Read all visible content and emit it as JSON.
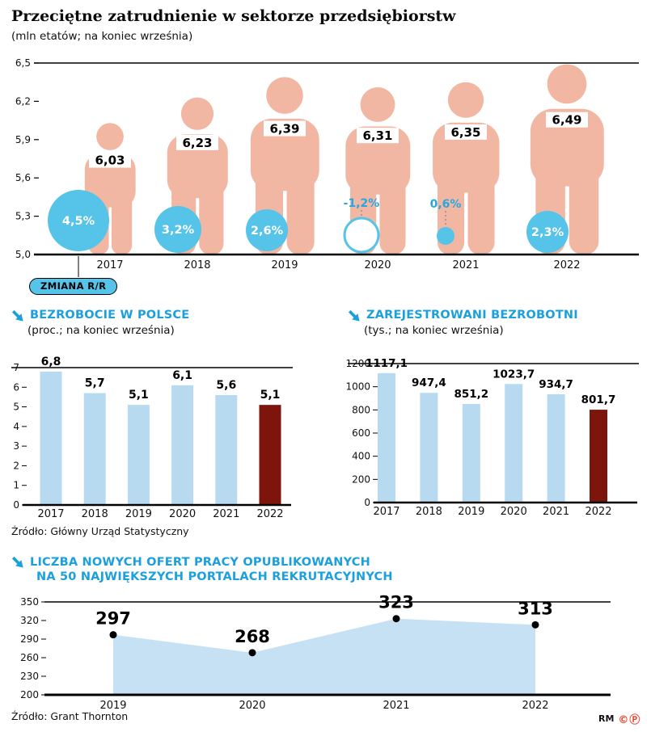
{
  "page": {
    "title": "Przeciętne zatrudnienie w sektorze przedsiębiorstw",
    "subtitle": "(mln etatów; na koniec września)",
    "credit": "RM",
    "copyright": "©Ⓟ"
  },
  "colors": {
    "figure": "#F2B7A3",
    "bubble": "#56C3E9",
    "header": "#1CA0DC",
    "bar_light": "#B8DAF0",
    "bar_dark": "#7E150C",
    "area_fill": "#C7E1F4"
  },
  "chart_data": [
    {
      "id": "employment",
      "type": "bar",
      "style": "pictogram",
      "title": "Przeciętne zatrudnienie w sektorze przedsiębiorstw",
      "subtitle": "(mln etatów; na koniec września)",
      "ylim": [
        5.0,
        6.5
      ],
      "yticks": [
        "6,5",
        "6,2",
        "5,9",
        "5,6",
        "5,3",
        "5,0"
      ],
      "categories": [
        "2017",
        "2018",
        "2019",
        "2020",
        "2021",
        "2022"
      ],
      "values": [
        6.03,
        6.23,
        6.39,
        6.31,
        6.35,
        6.49
      ],
      "value_labels": [
        "6,03",
        "6,23",
        "6,39",
        "6,31",
        "6,35",
        "6,49"
      ],
      "change_series": {
        "name": "ZMIANA R/R",
        "values": [
          4.5,
          3.2,
          2.6,
          -1.2,
          0.6,
          2.3
        ],
        "labels": [
          "4,5%",
          "3,2%",
          "2,6%",
          "-1,2%",
          "0,6%",
          "2,3%"
        ]
      },
      "badge_label": "ZMIANA R/R"
    },
    {
      "id": "unemployment-rate",
      "type": "bar",
      "title": "BEZROBOCIE W POLSCE",
      "subtitle": "(proc.; na koniec września)",
      "ylim": [
        0,
        7
      ],
      "yticks": [
        7,
        6,
        5,
        4,
        3,
        2,
        1,
        0
      ],
      "categories": [
        "2017",
        "2018",
        "2019",
        "2020",
        "2021",
        "2022"
      ],
      "values": [
        6.8,
        5.7,
        5.1,
        6.1,
        5.6,
        5.1
      ],
      "value_labels": [
        "6,8",
        "5,7",
        "5,1",
        "6,1",
        "5,6",
        "5,1"
      ],
      "highlight_last": true,
      "source": "Źródło: Główny Urząd Statystyczny"
    },
    {
      "id": "registered-unemployed",
      "type": "bar",
      "title": "ZAREJESTROWANI BEZROBOTNI",
      "subtitle": "(tys.; na koniec września)",
      "ylim": [
        0,
        1200
      ],
      "yticks": [
        1200,
        1000,
        800,
        600,
        400,
        200,
        0
      ],
      "categories": [
        "2017",
        "2018",
        "2019",
        "2020",
        "2021",
        "2022"
      ],
      "values": [
        1117.1,
        947.4,
        851.2,
        1023.7,
        934.7,
        801.7
      ],
      "value_labels": [
        "1117,1",
        "947,4",
        "851,2",
        "1023,7",
        "934,7",
        "801,7"
      ],
      "highlight_last": true
    },
    {
      "id": "job-offers",
      "type": "area",
      "title_line1": "LICZBA NOWYCH OFERT PRACY OPUBLIKOWANYCH",
      "title_line2": "NA 50 NAJWIĘKSZYCH PORTALACH REKRUTACYJNYCH",
      "ylim": [
        200,
        350
      ],
      "yticks": [
        350,
        320,
        290,
        260,
        230,
        200
      ],
      "categories": [
        "2019",
        "2020",
        "2021",
        "2022"
      ],
      "values": [
        297,
        268,
        323,
        313
      ],
      "source": "Źródło: Grant Thornton"
    }
  ]
}
